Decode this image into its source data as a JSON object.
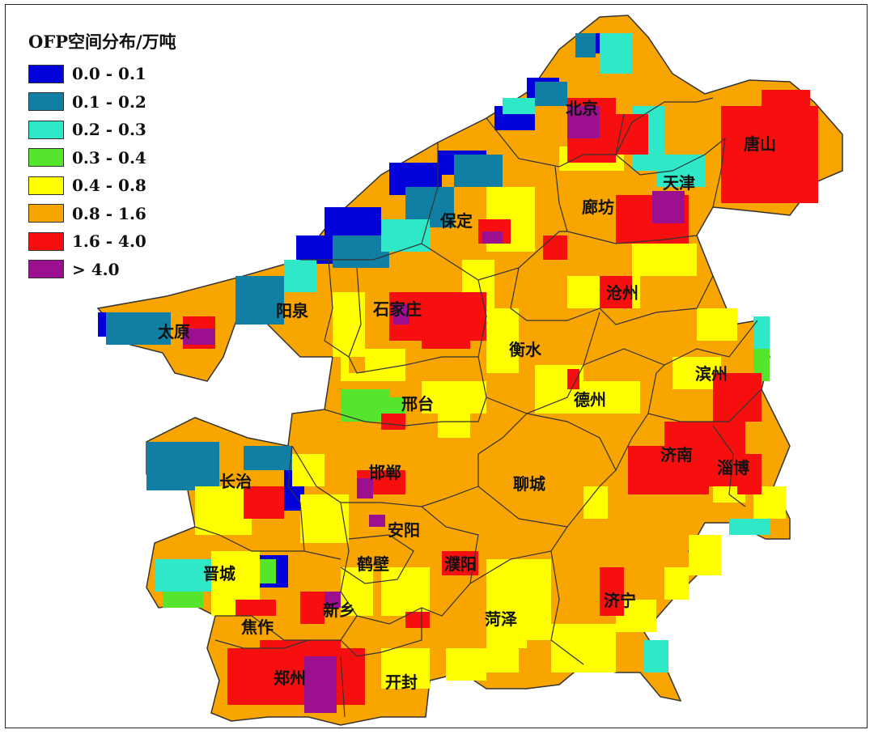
{
  "legend": {
    "title": "OFP空间分布/万吨",
    "items": [
      {
        "label": "0.0 - 0.1",
        "color": "#0000d8"
      },
      {
        "label": "0.1 - 0.2",
        "color": "#117fa3"
      },
      {
        "label": "0.2 - 0.3",
        "color": "#2ee8c8"
      },
      {
        "label": "0.3 - 0.4",
        "color": "#55e52c"
      },
      {
        "label": "0.4 - 0.8",
        "color": "#ffff00"
      },
      {
        "label": "0.8 - 1.6",
        "color": "#f9a500"
      },
      {
        "label": "1.6 - 4.0",
        "color": "#f70f0f"
      },
      {
        "label": "> 4.0",
        "color": "#9c0f8f"
      }
    ]
  },
  "cities": [
    "北京",
    "天津",
    "唐山",
    "保定",
    "廊坊",
    "阳泉",
    "太原",
    "石家庄",
    "沧州",
    "衡水",
    "滨州",
    "德州",
    "邢台",
    "济南",
    "淄博",
    "长治",
    "邯郸",
    "聊城",
    "安阳",
    "晋城",
    "鹤壁",
    "濮阳",
    "新乡",
    "焦作",
    "菏泽",
    "济宁",
    "郑州",
    "开封"
  ]
}
